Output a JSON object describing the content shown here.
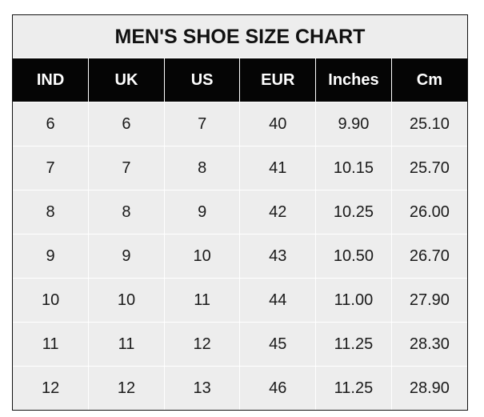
{
  "title": "MEN'S SHOE SIZE CHART",
  "headers": [
    "IND",
    "UK",
    "US",
    "EUR",
    "Inches",
    "Cm"
  ],
  "rows": [
    [
      "6",
      "6",
      "7",
      "40",
      "9.90",
      "25.10"
    ],
    [
      "7",
      "7",
      "8",
      "41",
      "10.15",
      "25.70"
    ],
    [
      "8",
      "8",
      "9",
      "42",
      "10.25",
      "26.00"
    ],
    [
      "9",
      "9",
      "10",
      "43",
      "10.50",
      "26.70"
    ],
    [
      "10",
      "10",
      "11",
      "44",
      "11.00",
      "27.90"
    ],
    [
      "11",
      "11",
      "12",
      "45",
      "11.25",
      "28.30"
    ],
    [
      "12",
      "12",
      "13",
      "46",
      "11.25",
      "28.90"
    ]
  ],
  "colors": {
    "header_bg": "#050505",
    "cell_bg": "#ededed",
    "grid": "#ffffff"
  }
}
